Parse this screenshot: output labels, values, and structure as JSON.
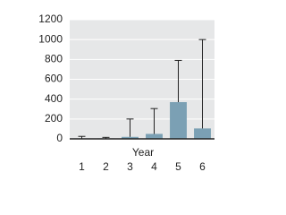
{
  "chart_data": {
    "type": "bar",
    "xlabel": "Year",
    "categories": [
      "1",
      "2",
      "3",
      "4",
      "5",
      "6"
    ],
    "values": [
      5,
      5,
      20,
      50,
      370,
      105
    ],
    "errors": [
      20,
      10,
      180,
      255,
      420,
      895
    ],
    "color": "#7ba0b4",
    "ylim": [
      0,
      1200
    ],
    "yticks": [
      0,
      200,
      400,
      600,
      800,
      1000,
      1200
    ],
    "grid": true
  }
}
